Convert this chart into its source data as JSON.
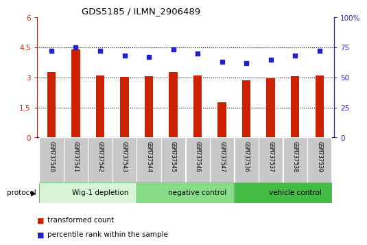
{
  "title": "GDS5185 / ILMN_2906489",
  "samples": [
    "GSM737540",
    "GSM737541",
    "GSM737542",
    "GSM737543",
    "GSM737544",
    "GSM737545",
    "GSM737546",
    "GSM737547",
    "GSM737536",
    "GSM737537",
    "GSM737538",
    "GSM737539"
  ],
  "bar_values": [
    3.25,
    4.4,
    3.1,
    3.02,
    3.05,
    3.25,
    3.08,
    1.75,
    2.85,
    2.97,
    3.05,
    3.1
  ],
  "dot_values": [
    72,
    75,
    72,
    68,
    67,
    73,
    70,
    63,
    62,
    65,
    68,
    72
  ],
  "bar_color": "#cc2200",
  "dot_color": "#2222cc",
  "ylim_left": [
    0,
    6
  ],
  "ylim_right": [
    0,
    100
  ],
  "yticks_left": [
    0,
    1.5,
    3.0,
    4.5,
    6.0
  ],
  "ytick_labels_left": [
    "0",
    "1.5",
    "3",
    "4.5",
    "6"
  ],
  "yticks_right": [
    0,
    25,
    50,
    75,
    100
  ],
  "ytick_labels_right": [
    "0",
    "25",
    "50",
    "75",
    "100%"
  ],
  "groups": [
    {
      "label": "Wig-1 depletion",
      "start": 0,
      "end": 4,
      "color": "#d8f5d8"
    },
    {
      "label": "negative control",
      "start": 4,
      "end": 8,
      "color": "#88dd88"
    },
    {
      "label": "vehicle control",
      "start": 8,
      "end": 12,
      "color": "#44bb44"
    }
  ],
  "protocol_label": "protocol",
  "legend_bar_label": "transformed count",
  "legend_dot_label": "percentile rank within the sample",
  "bg_color": "#ffffff",
  "tick_area_color": "#c8c8c8"
}
